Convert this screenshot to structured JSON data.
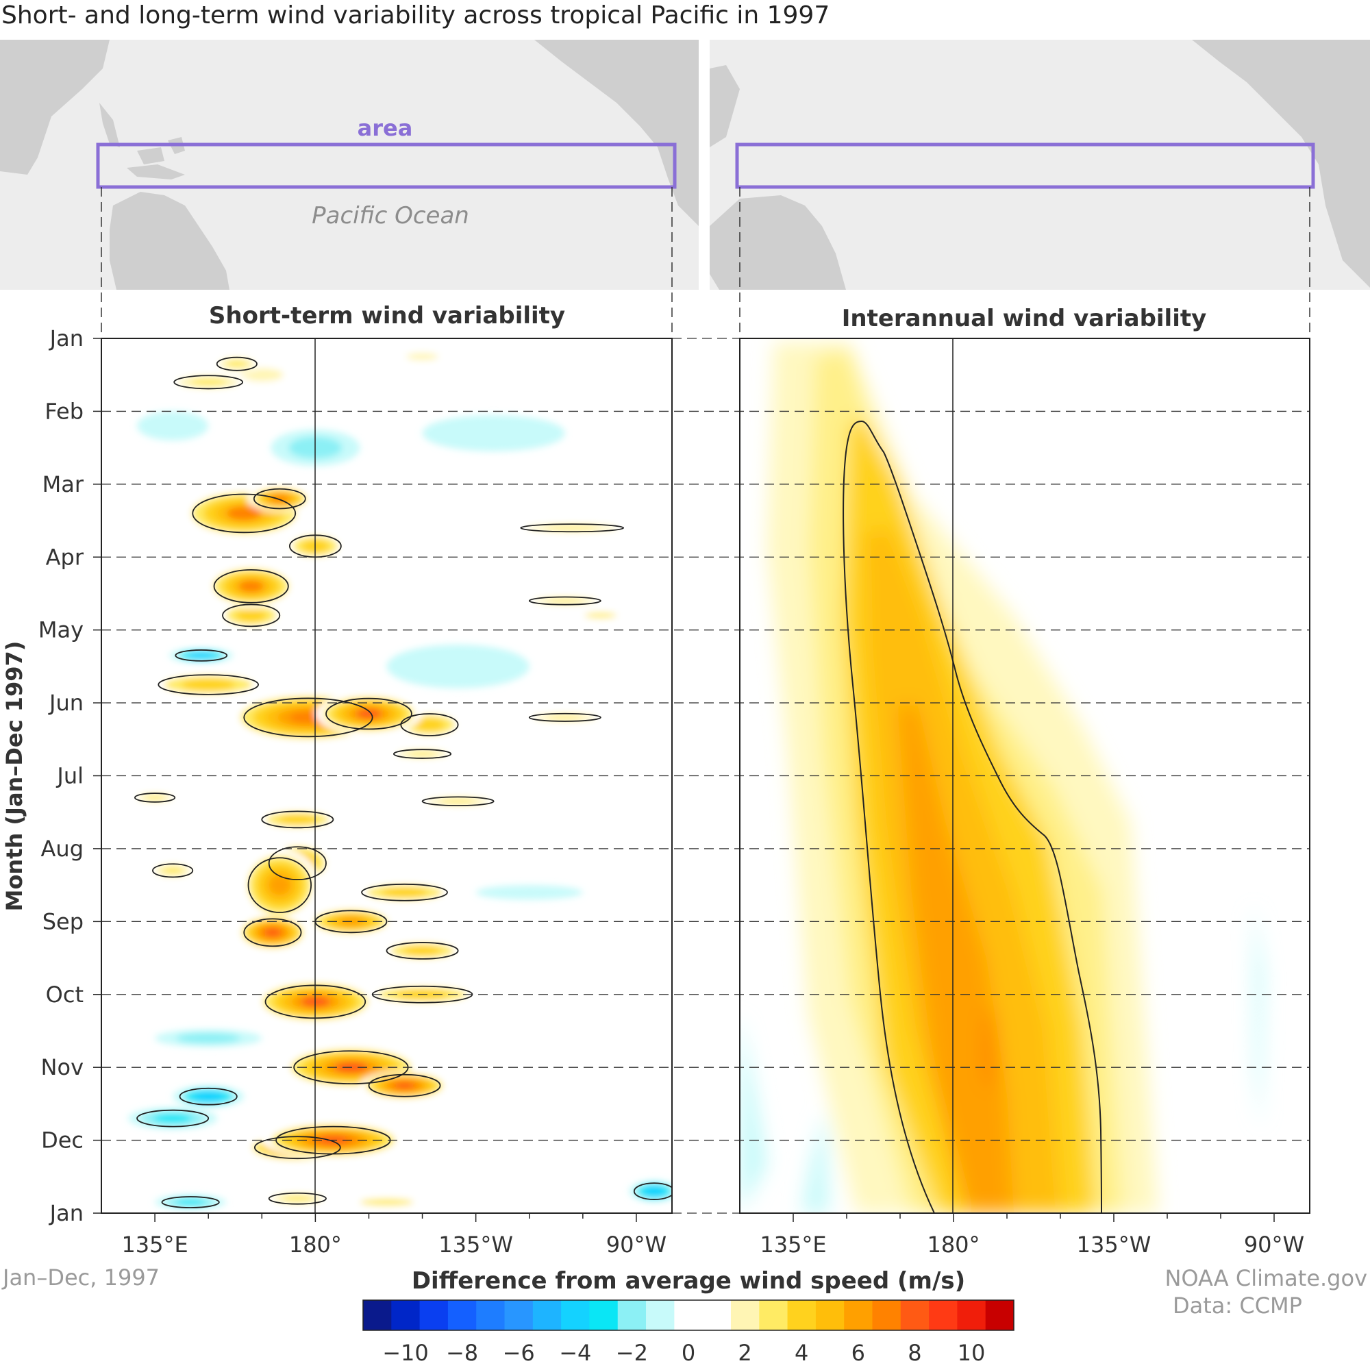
{
  "title": "Short- and long-term wind variability across tropical Pacific in 1997",
  "map": {
    "area_label": "area",
    "ocean_label": "Pacific Ocean",
    "land_color": "#cfcfcf",
    "sea_color": "#ededed",
    "box_color": "#8a6fd6"
  },
  "panels": [
    {
      "title": "Short-term wind variability"
    },
    {
      "title": "Interannual wind variability"
    }
  ],
  "y_axis": {
    "label": "Month (Jan–Dec 1997)",
    "ticks": [
      "Jan",
      "Feb",
      "Mar",
      "Apr",
      "May",
      "Jun",
      "Jul",
      "Aug",
      "Sep",
      "Oct",
      "Nov",
      "Dec",
      "Jan"
    ]
  },
  "x_axis": {
    "ticks": [
      {
        "lon": 135,
        "label": "135°E"
      },
      {
        "lon": 180,
        "label": "180°"
      },
      {
        "lon": 225,
        "label": "135°W"
      },
      {
        "lon": 270,
        "label": "90°W"
      }
    ],
    "range": [
      120,
      280
    ]
  },
  "footer": {
    "left": "Jan–Dec, 1997",
    "credit1": "NOAA Climate.gov",
    "credit2": "Data: CCMP"
  },
  "colorbar": {
    "label": "Difference from average wind speed (m/s)",
    "ticks": [
      -10,
      -8,
      -6,
      -4,
      -2,
      0,
      2,
      4,
      6,
      8,
      10
    ],
    "tick_labels": [
      "−10",
      "−8",
      "−6",
      "−4",
      "−2",
      "0",
      "2",
      "4",
      "6",
      "8",
      "10"
    ],
    "colors": [
      "#0a1a8c",
      "#0026c8",
      "#0a3ff0",
      "#1460ff",
      "#1e7dff",
      "#2896ff",
      "#1eb4ff",
      "#14d2ff",
      "#0ae6f5",
      "#8cf0f5",
      "#c8fafa",
      "#ffffff",
      "#ffffff",
      "#fff5b4",
      "#ffeb64",
      "#ffd21e",
      "#ffbe0a",
      "#ffa000",
      "#ff8200",
      "#ff5a14",
      "#ff3a14",
      "#f01e0a",
      "#c80000"
    ]
  },
  "chart_data": {
    "type": "heatmap",
    "x_units": "longitude (deg E)",
    "y_units": "month of 1997",
    "value_units": "m/s",
    "panels": [
      {
        "name": "Short-term wind variability",
        "blobs": [
          {
            "lon": 158,
            "month": 0.35,
            "w": 14,
            "h": 0.12,
            "v": 3
          },
          {
            "lon": 150,
            "month": 0.6,
            "w": 24,
            "h": 0.12,
            "v": 3
          },
          {
            "lon": 165,
            "month": 0.5,
            "w": 20,
            "h": 0.15,
            "v": 2
          },
          {
            "lon": 210,
            "month": 0.25,
            "w": 15,
            "h": 0.08,
            "v": 2
          },
          {
            "lon": 240,
            "month": 0.2,
            "w": 20,
            "h": 0.1,
            "v": 1.5
          },
          {
            "lon": 180,
            "month": 1.5,
            "w": 25,
            "h": 0.25,
            "v": -2
          },
          {
            "lon": 230,
            "month": 1.3,
            "w": 40,
            "h": 0.25,
            "v": -1.5
          },
          {
            "lon": 140,
            "month": 1.2,
            "w": 20,
            "h": 0.2,
            "v": -1.5
          },
          {
            "lon": 160,
            "month": 2.4,
            "w": 36,
            "h": 0.35,
            "v": 6.5
          },
          {
            "lon": 170,
            "month": 2.2,
            "w": 18,
            "h": 0.18,
            "v": 7
          },
          {
            "lon": 180,
            "month": 2.85,
            "w": 18,
            "h": 0.2,
            "v": 4
          },
          {
            "lon": 252,
            "month": 2.6,
            "w": 36,
            "h": 0.07,
            "v": 3
          },
          {
            "lon": 162,
            "month": 3.4,
            "w": 26,
            "h": 0.3,
            "v": 6.5
          },
          {
            "lon": 162,
            "month": 3.8,
            "w": 20,
            "h": 0.2,
            "v": 4
          },
          {
            "lon": 250,
            "month": 3.6,
            "w": 25,
            "h": 0.07,
            "v": 3
          },
          {
            "lon": 260,
            "month": 3.8,
            "w": 15,
            "h": 0.06,
            "v": 2.5
          },
          {
            "lon": 148,
            "month": 4.35,
            "w": 18,
            "h": 0.1,
            "v": -4
          },
          {
            "lon": 220,
            "month": 4.5,
            "w": 40,
            "h": 0.3,
            "v": -1.5
          },
          {
            "lon": 150,
            "month": 4.75,
            "w": 35,
            "h": 0.18,
            "v": 4
          },
          {
            "lon": 178,
            "month": 5.2,
            "w": 45,
            "h": 0.35,
            "v": 7
          },
          {
            "lon": 195,
            "month": 5.15,
            "w": 30,
            "h": 0.28,
            "v": 7.5
          },
          {
            "lon": 212,
            "month": 5.3,
            "w": 20,
            "h": 0.2,
            "v": 4
          },
          {
            "lon": 250,
            "month": 5.2,
            "w": 25,
            "h": 0.07,
            "v": 3
          },
          {
            "lon": 210,
            "month": 5.7,
            "w": 20,
            "h": 0.08,
            "v": 3
          },
          {
            "lon": 135,
            "month": 6.3,
            "w": 14,
            "h": 0.08,
            "v": 3
          },
          {
            "lon": 220,
            "month": 6.35,
            "w": 25,
            "h": 0.08,
            "v": 3
          },
          {
            "lon": 175,
            "month": 6.6,
            "w": 25,
            "h": 0.15,
            "v": 4
          },
          {
            "lon": 170,
            "month": 7.5,
            "w": 22,
            "h": 0.5,
            "v": 6
          },
          {
            "lon": 175,
            "month": 7.2,
            "w": 20,
            "h": 0.3,
            "v": 5
          },
          {
            "lon": 140,
            "month": 7.3,
            "w": 14,
            "h": 0.12,
            "v": 3
          },
          {
            "lon": 205,
            "month": 7.6,
            "w": 30,
            "h": 0.15,
            "v": 3.5
          },
          {
            "lon": 240,
            "month": 7.6,
            "w": 30,
            "h": 0.1,
            "v": -1.5
          },
          {
            "lon": 168,
            "month": 8.15,
            "w": 20,
            "h": 0.25,
            "v": 8
          },
          {
            "lon": 190,
            "month": 8.0,
            "w": 25,
            "h": 0.2,
            "v": 6
          },
          {
            "lon": 210,
            "month": 8.4,
            "w": 25,
            "h": 0.15,
            "v": 4
          },
          {
            "lon": 180,
            "month": 9.1,
            "w": 35,
            "h": 0.3,
            "v": 7.5
          },
          {
            "lon": 210,
            "month": 9.0,
            "w": 35,
            "h": 0.15,
            "v": 4
          },
          {
            "lon": 150,
            "month": 9.6,
            "w": 30,
            "h": 0.12,
            "v": -2
          },
          {
            "lon": 190,
            "month": 10.0,
            "w": 40,
            "h": 0.3,
            "v": 7.5
          },
          {
            "lon": 205,
            "month": 10.25,
            "w": 25,
            "h": 0.2,
            "v": 8
          },
          {
            "lon": 150,
            "month": 10.4,
            "w": 20,
            "h": 0.15,
            "v": -4
          },
          {
            "lon": 140,
            "month": 10.7,
            "w": 25,
            "h": 0.15,
            "v": -3
          },
          {
            "lon": 185,
            "month": 11.0,
            "w": 40,
            "h": 0.25,
            "v": 8
          },
          {
            "lon": 175,
            "month": 11.1,
            "w": 30,
            "h": 0.2,
            "v": 7
          },
          {
            "lon": 145,
            "month": 11.85,
            "w": 20,
            "h": 0.1,
            "v": -3
          },
          {
            "lon": 175,
            "month": 11.8,
            "w": 20,
            "h": 0.1,
            "v": 3
          },
          {
            "lon": 275,
            "month": 11.7,
            "w": 14,
            "h": 0.15,
            "v": -4
          },
          {
            "lon": 200,
            "month": 11.85,
            "w": 25,
            "h": 0.08,
            "v": 2.5
          }
        ]
      },
      {
        "name": "Interannual wind variability",
        "description_points": [
          {
            "month": 1.3,
            "lon": 160,
            "v": 3
          },
          {
            "month": 4.0,
            "lon": 168,
            "v": 5
          },
          {
            "month": 7.0,
            "lon": 182,
            "v": 6
          },
          {
            "month": 10.0,
            "lon": 193,
            "v": 7
          },
          {
            "month": 11.0,
            "lon": 196,
            "v": 7
          },
          {
            "month": 12.0,
            "lon": 196,
            "v": 6
          }
        ]
      }
    ]
  }
}
